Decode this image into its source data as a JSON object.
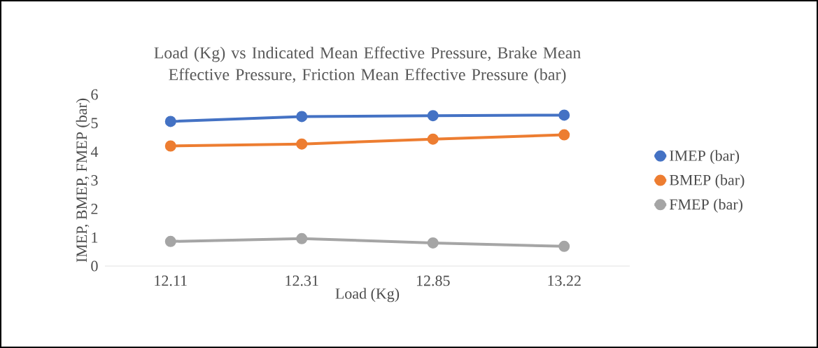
{
  "chart_data": {
    "type": "line",
    "title": "Load (Kg) vs Indicated Mean Effective Pressure, Brake Mean Effective Pressure, Friction Mean Effective Pressure (bar)",
    "xlabel": "Load (Kg)",
    "ylabel": "IMEP, BMEP, FMEP (bar)",
    "categories": [
      "12.11",
      "12.31",
      "12.85",
      "13.22"
    ],
    "series": [
      {
        "name": "IMEP (bar)",
        "color": "#4472c4",
        "values": [
          5.06,
          5.23,
          5.26,
          5.28
        ]
      },
      {
        "name": "BMEP (bar)",
        "color": "#ed7d31",
        "values": [
          4.2,
          4.27,
          4.44,
          4.59
        ]
      },
      {
        "name": "FMEP (bar)",
        "color": "#a5a5a5",
        "values": [
          0.86,
          0.96,
          0.81,
          0.69
        ]
      }
    ],
    "ylim": [
      0,
      6
    ],
    "yticks": [
      0,
      1,
      2,
      3,
      4,
      5,
      6
    ],
    "grid": false,
    "legend": "right",
    "marker": "circle",
    "line_style": "solid"
  }
}
